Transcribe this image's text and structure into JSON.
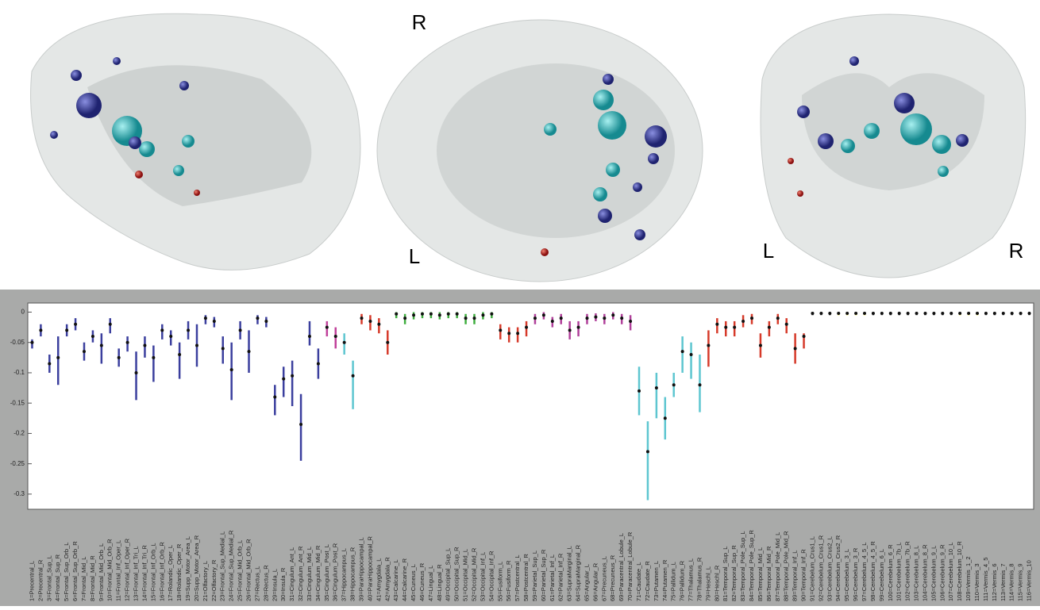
{
  "view_labels": [
    "R",
    "L",
    "L",
    "R"
  ],
  "chart_data": {
    "type": "range",
    "ylim": [
      -0.325,
      0.015
    ],
    "yticks": [
      0,
      -0.05,
      -0.1,
      -0.15,
      -0.2,
      -0.25,
      -0.3
    ],
    "categories": [
      "1=Precentral_L",
      "2=Precentral_R",
      "3=Frontal_Sup_L",
      "4=Frontal_Sup_R",
      "5=Frontal_Sup_Orb_L",
      "6=Frontal_Sup_Orb_R",
      "7=Frontal_Mid_L",
      "8=Frontal_Mid_R",
      "9=Frontal_Mid_Orb_L",
      "10=Frontal_Mid_Orb_R",
      "11=Frontal_Inf_Oper_L",
      "12=Frontal_Inf_Oper_R",
      "13=Frontal_Inf_Tri_L",
      "14=Frontal_Inf_Tri_R",
      "15=Frontal_Inf_Orb_L",
      "16=Frontal_Inf_Orb_R",
      "17=Rolandic_Oper_L",
      "18=Rolandic_Oper_R",
      "19=Supp_Motor_Area_L",
      "20=Supp_Motor_Area_R",
      "21=Olfactory_L",
      "22=Olfactory_R",
      "23=Frontal_Sup_Medial_L",
      "24=Frontal_Sup_Medial_R",
      "25=Frontal_Mid_Orb_L",
      "26=Frontal_Mid_Orb_R",
      "27=Rectus_L",
      "28=Rectus_R",
      "29=Insula_L",
      "30=Insula_R",
      "31=Cingulum_Ant_L",
      "32=Cingulum_Ant_R",
      "33=Cingulum_Mid_L",
      "34=Cingulum_Mid_R",
      "35=Cingulum_Post_L",
      "36=Cingulum_Post_R",
      "37=Hippocampus_L",
      "38=Hippocampus_R",
      "39=ParaHippocampal_L",
      "40=ParaHippocampal_R",
      "41=Amygdala_L",
      "42=Amygdala_R",
      "43=Calcarine_L",
      "44=Calcarine_R",
      "45=Cuneus_L",
      "46=Cuneus_R",
      "47=Lingual_L",
      "48=Lingual_R",
      "49=Occipital_Sup_L",
      "50=Occipital_Sup_R",
      "51=Occipital_Mid_L",
      "52=Occipital_Mid_R",
      "53=Occipital_Inf_L",
      "54=Occipital_Inf_R",
      "55=Fusiform_L",
      "56=Fusiform_R",
      "57=Postcentral_L",
      "58=Postcentral_R",
      "59=Parietal_Sup_L",
      "60=Parietal_Sup_R",
      "61=Parietal_Inf_L",
      "62=Parietal_Inf_R",
      "63=SupraMarginal_L",
      "64=SupraMarginal_R",
      "65=Angular_L",
      "66=Angular_R",
      "67=Precuneus_L",
      "68=Precuneus_R",
      "69=Paracentral_Lobule_L",
      "70=Paracentral_Lobule_R",
      "71=Caudate_L",
      "72=Caudate_R",
      "73=Putamen_L",
      "74=Putamen_R",
      "75=Pallidum_L",
      "76=Pallidum_R",
      "77=Thalamus_L",
      "78=Thalamus_R",
      "79=Heschl_L",
      "80=Heschl_R",
      "81=Temporal_Sup_L",
      "82=Temporal_Sup_R",
      "83=Temporal_Pole_Sup_L",
      "84=Temporal_Pole_Sup_R",
      "85=Temporal_Mid_L",
      "86=Temporal_Mid_R",
      "87=Temporal_Pole_Mid_L",
      "88=Temporal_Pole_Mid_R",
      "89=Temporal_Inf_L",
      "90=Temporal_Inf_R",
      "91=Cerebelum_Crus1_L",
      "92=Cerebelum_Crus1_R",
      "93=Cerebelum_Crus2_L",
      "94=Cerebelum_Crus2_R",
      "95=Cerebelum_3_L",
      "96=Cerebelum_3_R",
      "97=Cerebelum_4_5_L",
      "98=Cerebelum_4_5_R",
      "99=Cerebelum_6_L",
      "100=Cerebelum_6_R",
      "101=Cerebelum_7b_L",
      "102=Cerebelum_7b_R",
      "103=Cerebelum_8_L",
      "104=Cerebelum_8_R",
      "105=Cerebelum_9_L",
      "106=Cerebelum_9_R",
      "107=Cerebelum_10_L",
      "108=Cerebelum_10_R",
      "109=Vermis_1_2",
      "110=Vermis_3",
      "111=Vermis_4_5",
      "112=Vermis_6",
      "113=Vermis_7",
      "114=Vermis_8",
      "115=Vermis_9",
      "116=Vermis_10"
    ],
    "median": [
      -0.05,
      -0.03,
      -0.085,
      -0.075,
      -0.03,
      -0.02,
      -0.065,
      -0.04,
      -0.055,
      -0.02,
      -0.075,
      -0.05,
      -0.1,
      -0.055,
      -0.075,
      -0.03,
      -0.04,
      -0.07,
      -0.03,
      -0.055,
      -0.01,
      -0.015,
      -0.06,
      -0.095,
      -0.03,
      -0.065,
      -0.01,
      -0.015,
      -0.14,
      -0.11,
      -0.105,
      -0.185,
      -0.04,
      -0.085,
      -0.025,
      -0.04,
      -0.05,
      -0.105,
      -0.01,
      -0.015,
      -0.02,
      -0.05,
      -0.003,
      -0.01,
      -0.005,
      -0.003,
      -0.003,
      -0.005,
      -0.003,
      -0.003,
      -0.01,
      -0.01,
      -0.005,
      -0.003,
      -0.03,
      -0.035,
      -0.035,
      -0.025,
      -0.01,
      -0.005,
      -0.015,
      -0.01,
      -0.03,
      -0.025,
      -0.01,
      -0.008,
      -0.01,
      -0.005,
      -0.01,
      -0.015,
      -0.13,
      -0.23,
      -0.125,
      -0.175,
      -0.12,
      -0.065,
      -0.07,
      -0.12,
      -0.055,
      -0.02,
      -0.025,
      -0.025,
      -0.015,
      -0.01,
      -0.055,
      -0.025,
      -0.01,
      -0.02,
      -0.06,
      -0.04,
      -0.002,
      -0.002,
      -0.002,
      -0.002,
      -0.002,
      -0.002,
      -0.002,
      -0.002,
      -0.002,
      -0.002,
      -0.002,
      -0.002,
      -0.002,
      -0.002,
      -0.002,
      -0.002,
      -0.002,
      -0.002,
      -0.002,
      -0.002,
      -0.002,
      -0.002,
      -0.002,
      -0.002,
      -0.002,
      -0.002
    ],
    "lower": [
      -0.06,
      -0.04,
      -0.1,
      -0.12,
      -0.04,
      -0.03,
      -0.08,
      -0.05,
      -0.085,
      -0.035,
      -0.09,
      -0.065,
      -0.145,
      -0.075,
      -0.115,
      -0.045,
      -0.055,
      -0.11,
      -0.045,
      -0.09,
      -0.02,
      -0.025,
      -0.085,
      -0.145,
      -0.045,
      -0.1,
      -0.02,
      -0.025,
      -0.17,
      -0.14,
      -0.155,
      -0.245,
      -0.055,
      -0.11,
      -0.04,
      -0.06,
      -0.07,
      -0.16,
      -0.02,
      -0.03,
      -0.035,
      -0.07,
      -0.01,
      -0.02,
      -0.012,
      -0.01,
      -0.01,
      -0.012,
      -0.01,
      -0.01,
      -0.02,
      -0.02,
      -0.012,
      -0.01,
      -0.045,
      -0.05,
      -0.05,
      -0.04,
      -0.02,
      -0.012,
      -0.025,
      -0.02,
      -0.045,
      -0.04,
      -0.02,
      -0.015,
      -0.02,
      -0.012,
      -0.02,
      -0.03,
      -0.17,
      -0.31,
      -0.175,
      -0.21,
      -0.14,
      -0.1,
      -0.11,
      -0.165,
      -0.09,
      -0.035,
      -0.04,
      -0.04,
      -0.025,
      -0.02,
      -0.075,
      -0.04,
      -0.02,
      -0.035,
      -0.085,
      -0.06,
      -0.005,
      -0.005,
      -0.005,
      -0.005,
      -0.005,
      -0.005,
      -0.005,
      -0.005,
      -0.005,
      -0.005,
      -0.005,
      -0.005,
      -0.005,
      -0.005,
      -0.005,
      -0.005,
      -0.005,
      -0.005,
      -0.005,
      -0.005,
      -0.005,
      -0.005,
      -0.005,
      -0.005,
      -0.005,
      -0.005
    ],
    "upper": [
      -0.045,
      -0.02,
      -0.07,
      -0.04,
      -0.02,
      -0.01,
      -0.05,
      -0.03,
      -0.035,
      -0.01,
      -0.06,
      -0.04,
      -0.065,
      -0.04,
      -0.055,
      -0.02,
      -0.03,
      -0.05,
      -0.015,
      -0.02,
      -0.005,
      -0.008,
      -0.04,
      -0.05,
      -0.015,
      -0.03,
      -0.005,
      -0.008,
      -0.12,
      -0.09,
      -0.08,
      -0.135,
      -0.015,
      -0.06,
      -0.015,
      -0.025,
      -0.035,
      -0.08,
      -0.003,
      -0.005,
      -0.01,
      -0.03,
      0,
      -0.003,
      0,
      0,
      0,
      0,
      0,
      0,
      -0.003,
      -0.003,
      0,
      0,
      -0.02,
      -0.025,
      -0.025,
      -0.015,
      -0.003,
      0,
      -0.008,
      -0.003,
      -0.015,
      -0.015,
      -0.003,
      -0.002,
      -0.003,
      0,
      -0.003,
      -0.005,
      -0.09,
      -0.18,
      -0.1,
      -0.14,
      -0.1,
      -0.04,
      -0.05,
      -0.07,
      -0.03,
      -0.01,
      -0.015,
      -0.015,
      -0.005,
      -0.003,
      -0.035,
      -0.015,
      -0.003,
      -0.01,
      -0.035,
      -0.035,
      0,
      0,
      0,
      0,
      0,
      0,
      0,
      0,
      0,
      0,
      0,
      0,
      0,
      0,
      0,
      0,
      0,
      0,
      0,
      0,
      0,
      0,
      0,
      0,
      0,
      0
    ],
    "colors": [
      "#3b3f9e",
      "#3b3f9e",
      "#3b3f9e",
      "#3b3f9e",
      "#3b3f9e",
      "#3b3f9e",
      "#3b3f9e",
      "#3b3f9e",
      "#3b3f9e",
      "#3b3f9e",
      "#3b3f9e",
      "#3b3f9e",
      "#3b3f9e",
      "#3b3f9e",
      "#3b3f9e",
      "#3b3f9e",
      "#3b3f9e",
      "#3b3f9e",
      "#3b3f9e",
      "#3b3f9e",
      "#3b3f9e",
      "#3b3f9e",
      "#3b3f9e",
      "#3b3f9e",
      "#3b3f9e",
      "#3b3f9e",
      "#3b3f9e",
      "#3b3f9e",
      "#3b3f9e",
      "#3b3f9e",
      "#3b3f9e",
      "#3b3f9e",
      "#3b3f9e",
      "#3b3f9e",
      "#c0409a",
      "#c0409a",
      "#5ec6d0",
      "#5ec6d0",
      "#d63a2a",
      "#d63a2a",
      "#d63a2a",
      "#d63a2a",
      "#3fae3f",
      "#3fae3f",
      "#3fae3f",
      "#3fae3f",
      "#3fae3f",
      "#3fae3f",
      "#3fae3f",
      "#3fae3f",
      "#3fae3f",
      "#3fae3f",
      "#3fae3f",
      "#3fae3f",
      "#d63a2a",
      "#d63a2a",
      "#d63a2a",
      "#d63a2a",
      "#b0409a",
      "#b0409a",
      "#b0409a",
      "#b0409a",
      "#b0409a",
      "#b0409a",
      "#b0409a",
      "#b0409a",
      "#b0409a",
      "#b0409a",
      "#b0409a",
      "#b0409a",
      "#5ec6d0",
      "#5ec6d0",
      "#5ec6d0",
      "#5ec6d0",
      "#5ec6d0",
      "#5ec6d0",
      "#5ec6d0",
      "#5ec6d0",
      "#d63a2a",
      "#d63a2a",
      "#d63a2a",
      "#d63a2a",
      "#d63a2a",
      "#d63a2a",
      "#d63a2a",
      "#d63a2a",
      "#d63a2a",
      "#d63a2a",
      "#d63a2a",
      "#d63a2a",
      "#222222",
      "#555555",
      "#222222",
      "#e6d800",
      "#e6d800",
      "#e6d800",
      "#e6d800",
      "#222222",
      "#555555",
      "#222222",
      "#222222",
      "#222222",
      "#555555",
      "#222222",
      "#222222",
      "#222222",
      "#555555",
      "#e6d800",
      "#e6d800",
      "#e6d800",
      "#555555",
      "#222222",
      "#555555",
      "#222222",
      "#555555",
      "#555555"
    ]
  }
}
